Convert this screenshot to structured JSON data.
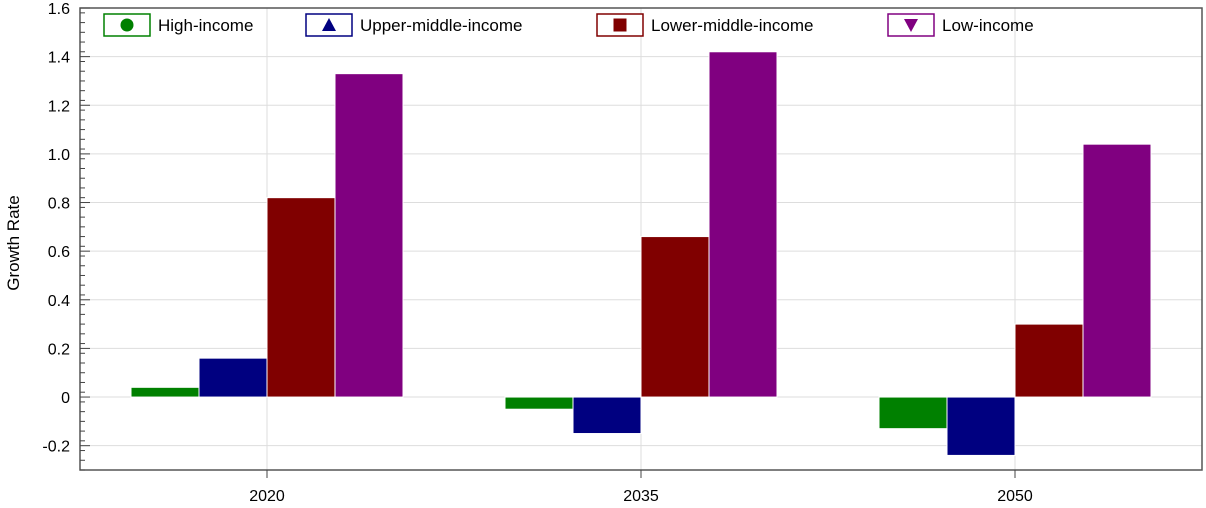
{
  "chart_data": {
    "type": "bar",
    "title": "",
    "xlabel": "",
    "ylabel": "Growth Rate",
    "categories": [
      "2020",
      "2035",
      "2050"
    ],
    "ylim": [
      -0.3,
      1.6
    ],
    "yticks": [
      "-0.2",
      "0",
      "0.2",
      "0.4",
      "0.6",
      "0.8",
      "1.0",
      "1.2",
      "1.4",
      "1.6"
    ],
    "grid": true,
    "legend_position": "top",
    "series": [
      {
        "name": "High-income",
        "color": "#008000",
        "marker": "circle",
        "values": [
          0.04,
          -0.05,
          -0.13
        ]
      },
      {
        "name": "Upper-middle-income",
        "color": "#000080",
        "marker": "triangle-up",
        "values": [
          0.16,
          -0.15,
          -0.24
        ]
      },
      {
        "name": "Lower-middle-income",
        "color": "#800000",
        "marker": "square",
        "values": [
          0.82,
          0.66,
          0.3
        ]
      },
      {
        "name": "Low-income",
        "color": "#800080",
        "marker": "triangle-down",
        "values": [
          1.33,
          1.42,
          1.04
        ]
      }
    ]
  }
}
